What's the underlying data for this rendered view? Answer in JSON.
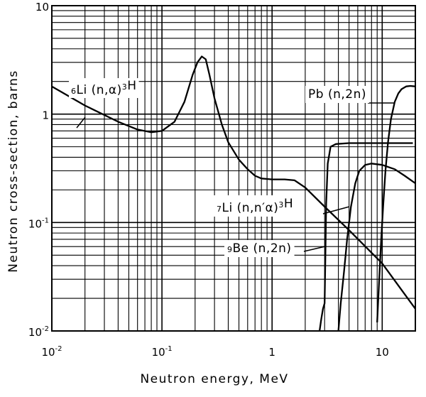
{
  "chart_data": {
    "type": "line",
    "title": "",
    "xlabel": "Neutron energy, MeV",
    "ylabel": "Neutron cross-section, barns",
    "xscale": "log",
    "yscale": "log",
    "xlim": [
      0.01,
      20
    ],
    "ylim": [
      0.01,
      10
    ],
    "grid": true,
    "x_tick_labels": [
      {
        "value": 0.01,
        "base": "10",
        "exp": "-2"
      },
      {
        "value": 0.1,
        "base": "10",
        "exp": "-1"
      },
      {
        "value": 1,
        "base": "1",
        "exp": ""
      },
      {
        "value": 10,
        "base": "10",
        "exp": ""
      }
    ],
    "y_tick_labels": [
      {
        "value": 0.01,
        "base": "10",
        "exp": "-2"
      },
      {
        "value": 0.1,
        "base": "10",
        "exp": "-1"
      },
      {
        "value": 1,
        "base": "1",
        "exp": ""
      },
      {
        "value": 10,
        "base": "10",
        "exp": ""
      }
    ],
    "series": [
      {
        "name": "6Li(n,α)3H",
        "label_parts": [
          [
            "sup",
            "6"
          ],
          [
            "n",
            "Li (n,"
          ],
          [
            "n",
            "α"
          ],
          [
            "n",
            ")"
          ],
          [
            "sup",
            "3"
          ],
          [
            "n",
            "H"
          ]
        ],
        "x": [
          0.01,
          0.02,
          0.04,
          0.06,
          0.08,
          0.1,
          0.13,
          0.16,
          0.19,
          0.21,
          0.23,
          0.25,
          0.27,
          0.3,
          0.35,
          0.4,
          0.5,
          0.6,
          0.7,
          0.8,
          1.0,
          1.3,
          1.6,
          2.0,
          3.0,
          5.0,
          10.0,
          20.0
        ],
        "y": [
          1.8,
          1.2,
          0.85,
          0.72,
          0.68,
          0.7,
          0.85,
          1.3,
          2.3,
          3.0,
          3.4,
          3.2,
          2.3,
          1.4,
          0.8,
          0.55,
          0.38,
          0.31,
          0.27,
          0.255,
          0.25,
          0.25,
          0.245,
          0.21,
          0.14,
          0.085,
          0.042,
          0.016
        ]
      },
      {
        "name": "Pb(n,2n)",
        "label_parts": [
          [
            "n",
            "Pb (n,2n)"
          ]
        ],
        "x": [
          9.0,
          9.4,
          9.8,
          10.2,
          10.7,
          11.3,
          12.0,
          13.0,
          14.0,
          15.0,
          16.5,
          18.0,
          20.0
        ],
        "y": [
          0.012,
          0.03,
          0.07,
          0.14,
          0.3,
          0.55,
          0.9,
          1.3,
          1.55,
          1.7,
          1.8,
          1.82,
          1.8
        ]
      },
      {
        "name": "7Li(n,n'α)3H",
        "label_parts": [
          [
            "sup",
            "7"
          ],
          [
            "n",
            "Li (n,n′"
          ],
          [
            "n",
            "α"
          ],
          [
            "n",
            ")"
          ],
          [
            "sup",
            "3"
          ],
          [
            "n",
            "H"
          ]
        ],
        "x": [
          4.0,
          4.2,
          4.5,
          4.8,
          5.2,
          5.7,
          6.2,
          7.0,
          8.0,
          10.0,
          13.0,
          16.0,
          20.0
        ],
        "y": [
          0.01,
          0.018,
          0.035,
          0.07,
          0.14,
          0.23,
          0.3,
          0.34,
          0.35,
          0.34,
          0.31,
          0.27,
          0.23
        ]
      },
      {
        "name": "9Be(n,2n)",
        "label_parts": [
          [
            "sup",
            "9"
          ],
          [
            "n",
            "Be (n,2n)"
          ]
        ],
        "x": [
          2.7,
          2.8,
          2.9,
          3.0,
          3.05,
          3.1,
          3.2,
          3.4,
          3.8,
          5.0,
          8.0,
          12.0,
          16.0,
          19.0
        ],
        "y": [
          0.01,
          0.013,
          0.016,
          0.018,
          0.05,
          0.15,
          0.35,
          0.5,
          0.53,
          0.54,
          0.54,
          0.54,
          0.54,
          0.54
        ]
      }
    ]
  }
}
